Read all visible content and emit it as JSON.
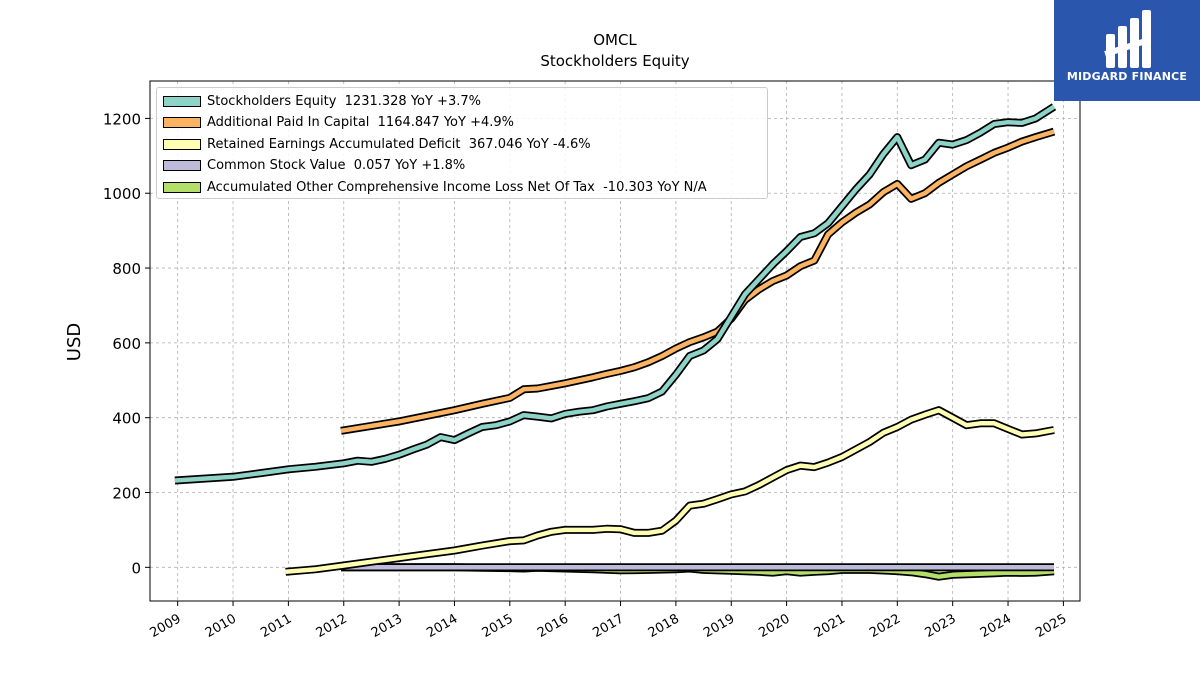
{
  "header": {
    "title": "OMCL",
    "subtitle": "Stockholders  Equity"
  },
  "brand": {
    "name": "MIDGARD FINANCE",
    "color": "#2b56ad"
  },
  "chart_data": {
    "type": "line",
    "title": "OMCL",
    "subtitle": "Stockholders  Equity",
    "ylabel": "USD",
    "xlabel": "",
    "xlim": [
      2008.5,
      2025.3
    ],
    "ylim": [
      -90,
      1300
    ],
    "grid": true,
    "legend_position": "top-left",
    "yticks": [
      0,
      200,
      400,
      600,
      800,
      1000,
      1200
    ],
    "xticks": [
      "2009",
      "2010",
      "2011",
      "2012",
      "2013",
      "2014",
      "2015",
      "2016",
      "2017",
      "2018",
      "2019",
      "2020",
      "2021",
      "2022",
      "2023",
      "2024",
      "2025"
    ],
    "series": [
      {
        "name": "Stockholders Equity",
        "legend": "Stockholders Equity  1231.328 YoY +3.7%",
        "color": "#8dd3c7",
        "points": [
          [
            2008.95,
            232
          ],
          [
            2010.0,
            242
          ],
          [
            2010.5,
            252
          ],
          [
            2011.0,
            262
          ],
          [
            2011.5,
            269
          ],
          [
            2012.0,
            278
          ],
          [
            2012.25,
            285
          ],
          [
            2012.5,
            282
          ],
          [
            2012.75,
            290
          ],
          [
            2013.0,
            301
          ],
          [
            2013.25,
            315
          ],
          [
            2013.5,
            328
          ],
          [
            2013.75,
            348
          ],
          [
            2014.0,
            340
          ],
          [
            2014.25,
            358
          ],
          [
            2014.5,
            375
          ],
          [
            2014.75,
            380
          ],
          [
            2015.0,
            390
          ],
          [
            2015.25,
            407
          ],
          [
            2015.5,
            403
          ],
          [
            2015.75,
            398
          ],
          [
            2016.0,
            410
          ],
          [
            2016.25,
            416
          ],
          [
            2016.5,
            420
          ],
          [
            2016.75,
            430
          ],
          [
            2017.0,
            437
          ],
          [
            2017.25,
            444
          ],
          [
            2017.5,
            452
          ],
          [
            2017.75,
            470
          ],
          [
            2018.0,
            515
          ],
          [
            2018.25,
            565
          ],
          [
            2018.5,
            580
          ],
          [
            2018.75,
            610
          ],
          [
            2019.0,
            670
          ],
          [
            2019.25,
            730
          ],
          [
            2019.5,
            770
          ],
          [
            2019.75,
            810
          ],
          [
            2020.0,
            845
          ],
          [
            2020.25,
            883
          ],
          [
            2020.5,
            893
          ],
          [
            2020.75,
            920
          ],
          [
            2021.0,
            965
          ],
          [
            2021.25,
            1010
          ],
          [
            2021.5,
            1050
          ],
          [
            2021.75,
            1105
          ],
          [
            2022.0,
            1150
          ],
          [
            2022.25,
            1075
          ],
          [
            2022.5,
            1090
          ],
          [
            2022.75,
            1135
          ],
          [
            2023.0,
            1130
          ],
          [
            2023.25,
            1142
          ],
          [
            2023.5,
            1162
          ],
          [
            2023.75,
            1185
          ],
          [
            2024.0,
            1190
          ],
          [
            2024.25,
            1188
          ],
          [
            2024.5,
            1200
          ],
          [
            2024.83,
            1231.328
          ]
        ]
      },
      {
        "name": "Additional Paid In Capital",
        "legend": "Additional Paid In Capital  1164.847 YoY +4.9%",
        "color": "#fdb462",
        "points": [
          [
            2011.95,
            365
          ],
          [
            2012.5,
            378
          ],
          [
            2013.0,
            390
          ],
          [
            2013.5,
            405
          ],
          [
            2014.0,
            420
          ],
          [
            2014.5,
            437
          ],
          [
            2015.0,
            453
          ],
          [
            2015.25,
            476
          ],
          [
            2015.5,
            478
          ],
          [
            2015.75,
            485
          ],
          [
            2016.0,
            492
          ],
          [
            2016.25,
            500
          ],
          [
            2016.5,
            508
          ],
          [
            2016.75,
            517
          ],
          [
            2017.0,
            525
          ],
          [
            2017.25,
            535
          ],
          [
            2017.5,
            548
          ],
          [
            2017.75,
            565
          ],
          [
            2018.0,
            585
          ],
          [
            2018.25,
            602
          ],
          [
            2018.5,
            615
          ],
          [
            2018.75,
            630
          ],
          [
            2019.0,
            665
          ],
          [
            2019.25,
            715
          ],
          [
            2019.5,
            743
          ],
          [
            2019.75,
            765
          ],
          [
            2020.0,
            780
          ],
          [
            2020.25,
            805
          ],
          [
            2020.5,
            820
          ],
          [
            2020.75,
            890
          ],
          [
            2021.0,
            922
          ],
          [
            2021.25,
            948
          ],
          [
            2021.5,
            970
          ],
          [
            2021.75,
            1003
          ],
          [
            2022.0,
            1025
          ],
          [
            2022.25,
            985
          ],
          [
            2022.5,
            1000
          ],
          [
            2022.75,
            1028
          ],
          [
            2023.0,
            1050
          ],
          [
            2023.25,
            1072
          ],
          [
            2023.5,
            1090
          ],
          [
            2023.75,
            1108
          ],
          [
            2024.0,
            1122
          ],
          [
            2024.25,
            1138
          ],
          [
            2024.5,
            1150
          ],
          [
            2024.83,
            1164.847
          ]
        ]
      },
      {
        "name": "Retained Earnings Accumulated Deficit",
        "legend": "Retained Earnings Accumulated Deficit  367.046 YoY -4.6%",
        "color": "#ffffb3",
        "points": [
          [
            2010.95,
            -12
          ],
          [
            2011.5,
            -5
          ],
          [
            2012.0,
            5
          ],
          [
            2012.5,
            15
          ],
          [
            2013.0,
            25
          ],
          [
            2013.5,
            35
          ],
          [
            2014.0,
            45
          ],
          [
            2014.5,
            58
          ],
          [
            2015.0,
            70
          ],
          [
            2015.25,
            72
          ],
          [
            2015.5,
            85
          ],
          [
            2015.75,
            95
          ],
          [
            2016.0,
            100
          ],
          [
            2016.25,
            100
          ],
          [
            2016.5,
            100
          ],
          [
            2016.75,
            103
          ],
          [
            2017.0,
            102
          ],
          [
            2017.25,
            92
          ],
          [
            2017.5,
            92
          ],
          [
            2017.75,
            98
          ],
          [
            2018.0,
            125
          ],
          [
            2018.25,
            165
          ],
          [
            2018.5,
            170
          ],
          [
            2018.75,
            182
          ],
          [
            2019.0,
            195
          ],
          [
            2019.25,
            203
          ],
          [
            2019.5,
            220
          ],
          [
            2019.75,
            240
          ],
          [
            2020.0,
            260
          ],
          [
            2020.25,
            272
          ],
          [
            2020.5,
            268
          ],
          [
            2020.75,
            280
          ],
          [
            2021.0,
            295
          ],
          [
            2021.25,
            315
          ],
          [
            2021.5,
            335
          ],
          [
            2021.75,
            360
          ],
          [
            2022.0,
            375
          ],
          [
            2022.25,
            395
          ],
          [
            2022.5,
            408
          ],
          [
            2022.75,
            420
          ],
          [
            2023.0,
            400
          ],
          [
            2023.25,
            380
          ],
          [
            2023.5,
            385
          ],
          [
            2023.75,
            385
          ],
          [
            2024.0,
            370
          ],
          [
            2024.25,
            355
          ],
          [
            2024.5,
            358
          ],
          [
            2024.83,
            367.046
          ]
        ]
      },
      {
        "name": "Common Stock Value",
        "legend": "Common Stock Value  0.057 YoY +1.8%",
        "color": "#bebada",
        "points": [
          [
            2011.95,
            0.03
          ],
          [
            2012.5,
            0.03
          ],
          [
            2013.0,
            0.03
          ],
          [
            2014.0,
            0.035
          ],
          [
            2015.0,
            0.04
          ],
          [
            2016.0,
            0.04
          ],
          [
            2017.0,
            0.042
          ],
          [
            2018.0,
            0.045
          ],
          [
            2019.0,
            0.048
          ],
          [
            2020.0,
            0.05
          ],
          [
            2021.0,
            0.052
          ],
          [
            2022.0,
            0.054
          ],
          [
            2023.0,
            0.055
          ],
          [
            2024.0,
            0.056
          ],
          [
            2024.83,
            0.057
          ]
        ]
      },
      {
        "name": "Accumulated Other Comprehensive Income Loss Net Of Tax",
        "legend": "Accumulated Other Comprehensive Income Loss Net Of Tax  -10.303 YoY N/A",
        "color": "#b3de69",
        "points": [
          [
            2011.95,
            0
          ],
          [
            2012.5,
            0
          ],
          [
            2013.0,
            0
          ],
          [
            2014.0,
            0
          ],
          [
            2014.5,
            -1
          ],
          [
            2015.0,
            -2
          ],
          [
            2015.25,
            -3
          ],
          [
            2015.5,
            -1
          ],
          [
            2016.0,
            -3
          ],
          [
            2016.5,
            -5
          ],
          [
            2017.0,
            -8
          ],
          [
            2017.5,
            -7
          ],
          [
            2018.0,
            -5
          ],
          [
            2018.25,
            -3
          ],
          [
            2018.5,
            -7
          ],
          [
            2019.0,
            -9
          ],
          [
            2019.5,
            -12
          ],
          [
            2019.75,
            -14
          ],
          [
            2020.0,
            -10
          ],
          [
            2020.25,
            -14
          ],
          [
            2020.5,
            -12
          ],
          [
            2020.75,
            -10
          ],
          [
            2021.0,
            -7
          ],
          [
            2021.5,
            -7
          ],
          [
            2022.0,
            -10
          ],
          [
            2022.25,
            -13
          ],
          [
            2022.5,
            -18
          ],
          [
            2022.75,
            -25
          ],
          [
            2023.0,
            -20
          ],
          [
            2023.5,
            -17
          ],
          [
            2023.75,
            -16
          ],
          [
            2024.0,
            -14
          ],
          [
            2024.25,
            -15
          ],
          [
            2024.5,
            -14
          ],
          [
            2024.83,
            -10.303
          ]
        ]
      }
    ]
  }
}
